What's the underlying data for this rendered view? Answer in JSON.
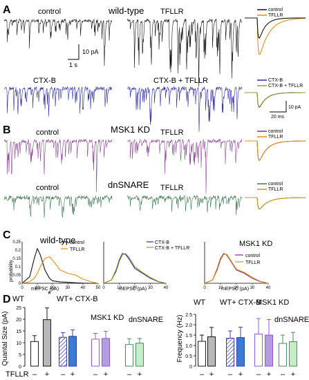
{
  "panels": {
    "A": {
      "label": "A",
      "title": "wild-type",
      "trace_labels": [
        "control",
        "TFLLR",
        "CTX-B",
        "CTX-B + TFLLR"
      ],
      "scale_amp": "10 pA",
      "scale_time": "1 s",
      "avg_scale_amp": "10 pA",
      "avg_scale_time": "20 ms",
      "legend_top": [
        "control",
        "TFLLR"
      ],
      "legend_bottom": [
        "CTX-B",
        "CTX-B + TFLLR"
      ]
    },
    "B": {
      "label": "B",
      "title": "MSK1 KD",
      "title2": "dnSNARE",
      "trace_labels": [
        "control",
        "TFLLR",
        "control",
        "TFLLR"
      ],
      "legend_top": [
        "control",
        "TFLLR"
      ],
      "legend_bottom": [
        "control",
        "TFLLR"
      ]
    },
    "C": {
      "label": "C",
      "title": "wild-type",
      "title2": "MSK1 KD",
      "ylabel": "probability",
      "xlabel": "mEPSC (pA)",
      "legend1": [
        "control",
        "TFLLR"
      ],
      "legend2": [
        "CTX-B",
        "CTX-B + TFLLR"
      ],
      "legend3": [
        "control",
        "TFLLR"
      ]
    },
    "D": {
      "label": "D",
      "left_ylabel": "Quantal Size (pA)",
      "right_ylabel": "Frequency (Hz)",
      "tfllr_label": "TFLLR",
      "minus": "–",
      "plus": "+",
      "star": "*",
      "groups": [
        "WT",
        "WT+ CTX-B",
        "MSK1 KD",
        "dnSNARE"
      ]
    }
  },
  "colors": {
    "wt": "#111111",
    "tfllr": "#d9921c",
    "ctxb": "#2a2aa0",
    "msk": "#7a2a8a",
    "msk_trace": "#8a4a95",
    "dn": "#3e7a52",
    "ctx_tfllr_avg": "#9a9a30"
  },
  "chart_data": [
    {
      "type": "line",
      "panel": "C",
      "title": "wild-type",
      "xlabel": "mEPSC (pA)",
      "ylabel": "probability",
      "xlim": [
        0,
        50
      ],
      "ylim": [
        0,
        0.25
      ],
      "x": [
        0,
        5,
        8,
        10,
        12,
        15,
        18,
        20,
        25,
        30,
        35,
        40,
        45,
        50
      ],
      "series": [
        {
          "name": "control",
          "values": [
            0,
            0.04,
            0.15,
            0.21,
            0.17,
            0.08,
            0.03,
            0.015,
            0.008,
            0.006,
            0.003,
            0.001,
            0,
            0
          ]
        },
        {
          "name": "TFLLR",
          "values": [
            0,
            0.01,
            0.03,
            0.06,
            0.1,
            0.15,
            0.16,
            0.14,
            0.08,
            0.06,
            0.05,
            0.025,
            0.01,
            0
          ]
        }
      ]
    },
    {
      "type": "line",
      "panel": "C",
      "xlabel": "mEPSC (pA)",
      "xlim": [
        0,
        40
      ],
      "x": [
        0,
        5,
        8,
        10,
        12,
        14,
        16,
        20,
        25,
        30,
        35,
        40
      ],
      "series": [
        {
          "name": "CTX-B",
          "values": [
            0,
            0.02,
            0.08,
            0.14,
            0.18,
            0.175,
            0.15,
            0.09,
            0.06,
            0.03,
            0.01,
            0
          ]
        },
        {
          "name": "CTX-B + TFLLR",
          "values": [
            0,
            0.02,
            0.07,
            0.13,
            0.17,
            0.18,
            0.16,
            0.1,
            0.065,
            0.035,
            0.012,
            0
          ]
        }
      ]
    },
    {
      "type": "line",
      "panel": "C",
      "title": "MSK1 KD",
      "xlabel": "mEPSC (pA)",
      "xlim": [
        0,
        40
      ],
      "x": [
        0,
        5,
        8,
        10,
        12,
        14,
        16,
        20,
        25,
        30,
        35,
        40
      ],
      "series": [
        {
          "name": "control",
          "values": [
            0,
            0.02,
            0.09,
            0.15,
            0.18,
            0.17,
            0.14,
            0.08,
            0.06,
            0.03,
            0.01,
            0
          ]
        },
        {
          "name": "TFLLR",
          "values": [
            0,
            0.02,
            0.08,
            0.14,
            0.175,
            0.175,
            0.145,
            0.085,
            0.065,
            0.035,
            0.012,
            0
          ]
        }
      ]
    },
    {
      "type": "bar",
      "panel": "D",
      "ylabel": "Quantal Size (pA)",
      "ylim": [
        0,
        25
      ],
      "yticks": [
        0,
        5,
        10,
        15,
        20,
        25
      ],
      "categories": [
        "WT –",
        "WT +",
        "WT+ CTX-B –",
        "WT+ CTX-B +",
        "MSK1 KD –",
        "MSK1 KD +",
        "dnSNARE –",
        "dnSNARE +"
      ],
      "values": [
        10.5,
        19.8,
        12.3,
        12.7,
        11.5,
        11.8,
        9.2,
        9.8
      ],
      "errors": [
        2.5,
        5.0,
        2.0,
        2.8,
        2.5,
        3.0,
        2.5,
        2.0
      ]
    },
    {
      "type": "bar",
      "panel": "D",
      "ylabel": "Frequency (Hz)",
      "ylim": [
        0,
        2.5
      ],
      "yticks": [
        0,
        0.5,
        1.0,
        1.5,
        2.0,
        2.5
      ],
      "categories": [
        "WT –",
        "WT +",
        "WT+ CTX-B –",
        "WT+ CTX-B +",
        "MSK1 KD –",
        "MSK1 KD +",
        "dnSNARE –",
        "dnSNARE +"
      ],
      "values": [
        1.2,
        1.42,
        1.35,
        1.38,
        1.55,
        1.5,
        1.1,
        1.18
      ],
      "errors": [
        0.3,
        0.45,
        0.35,
        0.5,
        0.75,
        0.75,
        0.4,
        0.45
      ]
    }
  ]
}
